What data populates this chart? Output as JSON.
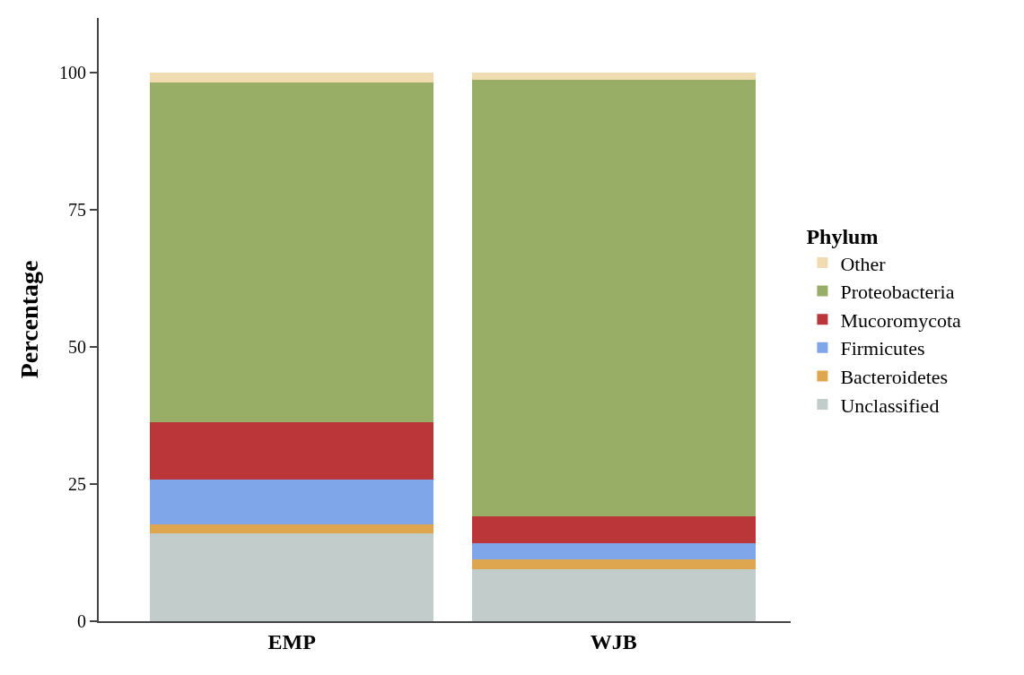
{
  "chart_data": {
    "type": "bar",
    "stacked": true,
    "ylabel": "Percentage",
    "legend_title": "Phylum",
    "legend": "right",
    "grid": false,
    "categories": [
      "EMP",
      "WJB"
    ],
    "series": [
      {
        "name": "Unclassified",
        "color": "#c1cccb",
        "values": [
          16.1,
          9.5
        ]
      },
      {
        "name": "Bacteroidetes",
        "color": "#dea64e",
        "values": [
          1.5,
          1.7
        ]
      },
      {
        "name": "Firmicutes",
        "color": "#80a6ea",
        "values": [
          8.2,
          3.0
        ]
      },
      {
        "name": "Mucoromycota",
        "color": "#bb3638",
        "values": [
          10.5,
          4.9
        ]
      },
      {
        "name": "Proteobacteria",
        "color": "#98ae66",
        "values": [
          62.0,
          79.6
        ]
      },
      {
        "name": "Other",
        "color": "#f0dcb0",
        "values": [
          1.7,
          1.3
        ]
      }
    ],
    "ylim": [
      0,
      110
    ],
    "yticks": [
      0,
      25,
      50,
      75,
      100
    ]
  }
}
